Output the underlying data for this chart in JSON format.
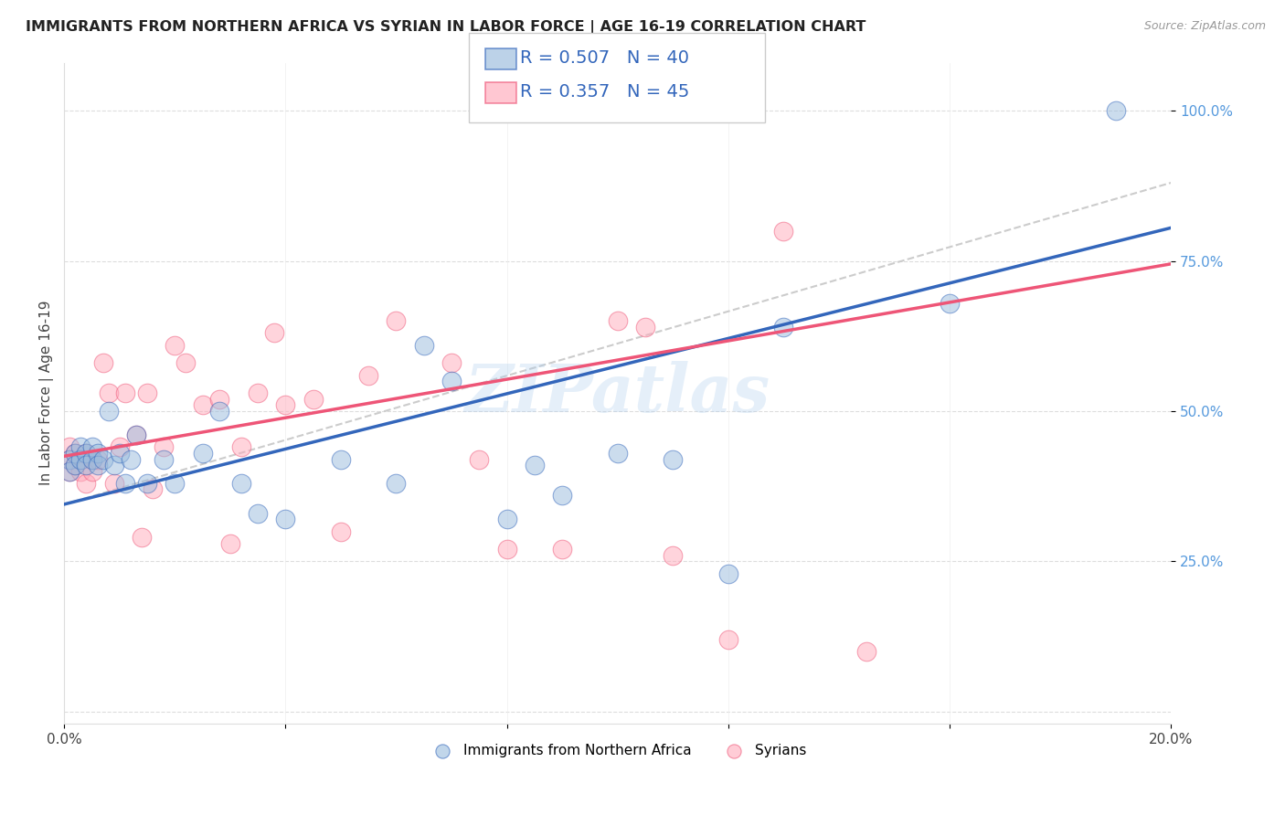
{
  "title": "IMMIGRANTS FROM NORTHERN AFRICA VS SYRIAN IN LABOR FORCE | AGE 16-19 CORRELATION CHART",
  "source": "Source: ZipAtlas.com",
  "ylabel": "In Labor Force | Age 16-19",
  "xmin": 0.0,
  "xmax": 0.2,
  "ymin": 0.0,
  "ymax": 1.05,
  "legend1_R": "0.507",
  "legend1_N": "40",
  "legend2_R": "0.357",
  "legend2_N": "45",
  "color_blue": "#99bbdd",
  "color_pink": "#ffaabb",
  "color_blue_line": "#3366bb",
  "color_pink_line": "#ee5577",
  "watermark": "ZIPatlas",
  "blue_x": [
    0.001,
    0.001,
    0.002,
    0.002,
    0.003,
    0.003,
    0.004,
    0.004,
    0.005,
    0.005,
    0.006,
    0.006,
    0.007,
    0.008,
    0.009,
    0.01,
    0.011,
    0.012,
    0.013,
    0.015,
    0.018,
    0.02,
    0.025,
    0.028,
    0.032,
    0.035,
    0.04,
    0.05,
    0.06,
    0.065,
    0.07,
    0.08,
    0.085,
    0.09,
    0.1,
    0.11,
    0.12,
    0.13,
    0.16,
    0.19
  ],
  "blue_y": [
    0.42,
    0.4,
    0.43,
    0.41,
    0.44,
    0.42,
    0.43,
    0.41,
    0.44,
    0.42,
    0.43,
    0.41,
    0.42,
    0.5,
    0.41,
    0.43,
    0.38,
    0.42,
    0.46,
    0.38,
    0.42,
    0.38,
    0.43,
    0.5,
    0.38,
    0.33,
    0.32,
    0.42,
    0.38,
    0.61,
    0.55,
    0.32,
    0.41,
    0.36,
    0.43,
    0.42,
    0.23,
    0.64,
    0.68,
    1.0
  ],
  "pink_x": [
    0.001,
    0.001,
    0.001,
    0.002,
    0.002,
    0.003,
    0.003,
    0.004,
    0.004,
    0.005,
    0.005,
    0.006,
    0.007,
    0.008,
    0.009,
    0.01,
    0.011,
    0.013,
    0.014,
    0.015,
    0.016,
    0.018,
    0.02,
    0.022,
    0.025,
    0.028,
    0.03,
    0.032,
    0.035,
    0.038,
    0.04,
    0.045,
    0.05,
    0.055,
    0.06,
    0.07,
    0.075,
    0.08,
    0.09,
    0.1,
    0.105,
    0.11,
    0.12,
    0.13,
    0.145
  ],
  "pink_y": [
    0.44,
    0.42,
    0.4,
    0.43,
    0.41,
    0.42,
    0.4,
    0.43,
    0.38,
    0.42,
    0.4,
    0.42,
    0.58,
    0.53,
    0.38,
    0.44,
    0.53,
    0.46,
    0.29,
    0.53,
    0.37,
    0.44,
    0.61,
    0.58,
    0.51,
    0.52,
    0.28,
    0.44,
    0.53,
    0.63,
    0.51,
    0.52,
    0.3,
    0.56,
    0.65,
    0.58,
    0.42,
    0.27,
    0.27,
    0.65,
    0.64,
    0.26,
    0.12,
    0.8,
    0.1
  ],
  "blue_line_x0": 0.0,
  "blue_line_y0": 0.345,
  "blue_line_x1": 0.2,
  "blue_line_y1": 0.805,
  "pink_line_x0": 0.0,
  "pink_line_y0": 0.425,
  "pink_line_x1": 0.2,
  "pink_line_y1": 0.745,
  "dash_line_x0": 0.0,
  "dash_line_y0": 0.345,
  "dash_line_x1": 0.2,
  "dash_line_y1": 0.88
}
